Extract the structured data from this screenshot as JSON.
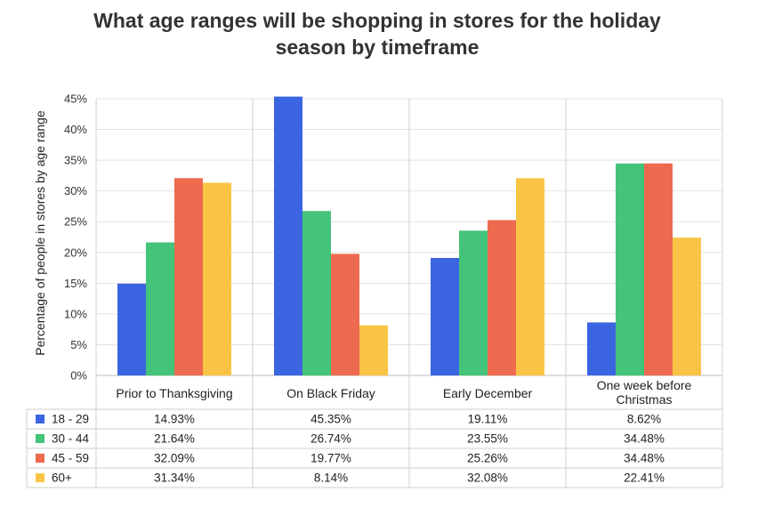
{
  "chart_data": {
    "type": "bar",
    "title_lines": [
      "What age ranges will be shopping in stores for the holiday",
      "season by timeframe"
    ],
    "ylabel": "Percentage of people in stores by age range",
    "xlabel": "",
    "ylim": [
      0,
      45
    ],
    "yticks": [
      "0%",
      "5%",
      "10%",
      "15%",
      "20%",
      "25%",
      "30%",
      "35%",
      "40%",
      "45%"
    ],
    "grid": true,
    "legend_placement": "data-table-below",
    "categories": [
      [
        "Prior to Thanksgiving"
      ],
      [
        "On Black Friday"
      ],
      [
        "Early December"
      ],
      [
        "One week before",
        "Christmas"
      ]
    ],
    "series": [
      {
        "name": "18 - 29",
        "color": "#3b64e0",
        "values": [
          14.93,
          45.35,
          19.11,
          8.62
        ],
        "labels": [
          "14.93%",
          "45.35%",
          "19.11%",
          "8.62%"
        ]
      },
      {
        "name": "30 - 44",
        "color": "#44c47a",
        "values": [
          21.64,
          26.74,
          23.55,
          34.48
        ],
        "labels": [
          "21.64%",
          "26.74%",
          "23.55%",
          "34.48%"
        ]
      },
      {
        "name": "45 - 59",
        "color": "#ee6a4f",
        "values": [
          32.09,
          19.77,
          25.26,
          34.48
        ],
        "labels": [
          "32.09%",
          "19.77%",
          "25.26%",
          "34.48%"
        ]
      },
      {
        "name": "60+",
        "color": "#f9c444",
        "values": [
          31.34,
          8.14,
          32.08,
          22.41
        ],
        "labels": [
          "31.34%",
          "8.14%",
          "32.08%",
          "22.41%"
        ]
      }
    ]
  }
}
